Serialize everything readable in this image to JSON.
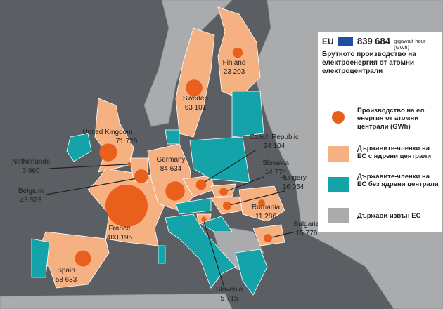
{
  "header": {
    "eu_label": "EU",
    "eu_total": {
      "value": 839684,
      "label": "839 684"
    },
    "unit": "gigawatt-hour (GWh)",
    "description": "Брутното производство на електроенергия от атомни електроцентрали"
  },
  "legend": [
    "Производство на ел. енергия от атомни централи (GWh)",
    "Държавите-членки на ЕС с ядрени централи",
    "Държавите-членки на ЕС без ядрени централи",
    "Държави извън ЕС"
  ],
  "countries": [
    {
      "name": "Finland",
      "value": {
        "value": 23203,
        "label": "23 203"
      }
    },
    {
      "name": "Sweden",
      "value": {
        "value": 63101,
        "label": "63 101"
      }
    },
    {
      "name": "United Kingdom",
      "value": {
        "value": 71726,
        "label": "71 726"
      }
    },
    {
      "name": "Netherlands",
      "value": {
        "value": 3960,
        "label": "3 960"
      }
    },
    {
      "name": "Belgium",
      "value": {
        "value": 43523,
        "label": "43 523"
      }
    },
    {
      "name": "Germany",
      "value": {
        "value": 84634,
        "label": "84 634"
      }
    },
    {
      "name": "France",
      "value": {
        "value": 403195,
        "label": "403 195"
      }
    },
    {
      "name": "Spain",
      "value": {
        "value": 58633,
        "label": "58 633"
      }
    },
    {
      "name": "Czech Republic",
      "value": {
        "value": 24104,
        "label": "24 104"
      }
    },
    {
      "name": "Slovakia",
      "value": {
        "value": 14774,
        "label": "14 774"
      }
    },
    {
      "name": "Hungary",
      "value": {
        "value": 16054,
        "label": "16 054"
      }
    },
    {
      "name": "Slovenia",
      "value": {
        "value": 5715,
        "label": "5 715"
      }
    },
    {
      "name": "Romania",
      "value": {
        "value": 11286,
        "label": "11 286"
      }
    },
    {
      "name": "Bulgaria",
      "value": {
        "value": 15776,
        "label": "15 776"
      }
    }
  ]
}
